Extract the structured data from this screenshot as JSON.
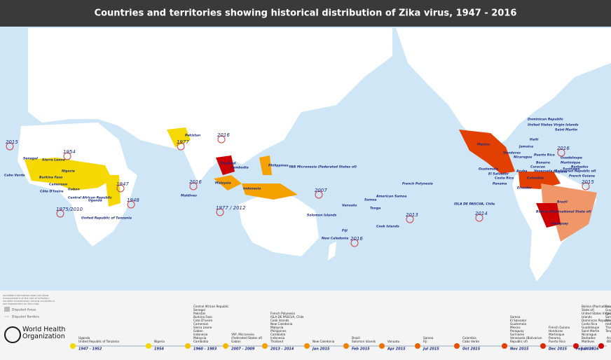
{
  "header": {
    "title": "Countries and territories showing historical distribution of Zika virus, 1947 - 2016"
  },
  "map": {
    "labels": [
      "Cabo Verde",
      "Senegal",
      "Sierra Leone",
      "Burkina Faso",
      "Côte D'Ivoire",
      "Cameroon",
      "Gabon",
      "Nigeria",
      "Central African Republic",
      "Uganda",
      "United Republic of Tanzania",
      "Pakistan",
      "Maldives",
      "Thailand",
      "Cambodia",
      "Philippines",
      "Malaysia",
      "Indonesia",
      "YAP, Micronesia (Federated States of)",
      "Vanuatu",
      "Solomon Islands",
      "Fiji",
      "New Caledonia",
      "Samoa",
      "American Samoa",
      "Tonga",
      "Cook Islands",
      "French Polynesia",
      "ISLA DE PASCUA, Chile",
      "Mexico",
      "Honduras",
      "Nicaragua",
      "Guatemala",
      "El Salvador",
      "Costa Rica",
      "Panama",
      "Dominican Republic",
      "United States Virgin Islands",
      "Haiti",
      "Jamaica",
      "Saint Martin",
      "Puerto Rico",
      "Guadeloupe",
      "Martinique",
      "Aruba",
      "Bonaire",
      "Curacao",
      "Colombia",
      "Venezuela (Bolivarian Republic of)",
      "Guyana",
      "Suriname",
      "French Guiana",
      "Ecuador",
      "Brazil",
      "Bolivia (Plurinational State of)",
      "Paraguay",
      "Barbados"
    ],
    "years": [
      "2015",
      "1954",
      "1947",
      "1948",
      "1975/2010",
      "1977",
      "2016",
      "2016",
      "1977 / 2012",
      "2007",
      "2016",
      "2013",
      "2014",
      "2016",
      "2015"
    ]
  },
  "legend": {
    "note": "Available information does not allow measurement of the risk of infection; variable transmission among countries is not represented on this map.",
    "items": [
      "Disputed Areas",
      "Disputed Borders"
    ]
  },
  "logo": {
    "name": "World Health Organization"
  },
  "timeline": [
    {
      "period": "1947 - 1952",
      "color": "#f5d800",
      "countries": [
        "Uganda",
        "United Republic of Tanzania"
      ]
    },
    {
      "period": "1954",
      "color": "#f5d800",
      "countries": [
        "Nigeria"
      ]
    },
    {
      "period": "1960 - 1983",
      "color": "#f5c400",
      "countries": [
        "Central African Republic",
        "Senegal",
        "Pakistan",
        "Burkina Faso",
        "Cote D'Ivoire",
        "Cameroon",
        "Sierra Leone",
        "Gabon",
        "Indonesia",
        "Malaysia",
        "Cambodia"
      ]
    },
    {
      "period": "2007 - 2009",
      "color": "#f5b800",
      "countries": [
        "YAP, Micronesia",
        "(Federated States of)",
        "Gabon"
      ]
    },
    {
      "period": "2013 - 2014",
      "color": "#f5a200",
      "countries": [
        "French Polynesia",
        "ISLA DE PASCUA, Chile",
        "Cook Islands",
        "New Caledonia",
        "Malaysia",
        "Philippines",
        "Cambodia",
        "Indonesia",
        "Thailand"
      ]
    },
    {
      "period": "Jan 2015",
      "color": "#f39000",
      "countries": [
        "New Caledonia"
      ]
    },
    {
      "period": "Feb 2015",
      "color": "#f08000",
      "countries": [
        "Brazil",
        "Solomon Islands"
      ]
    },
    {
      "period": "Apr 2015",
      "color": "#ee7000",
      "countries": [
        "Vanuatu"
      ]
    },
    {
      "period": "Jul 2015",
      "color": "#ea6000",
      "countries": [
        "Samoa",
        "Fiji"
      ]
    },
    {
      "period": "Oct 2015",
      "color": "#e65000",
      "countries": [
        "Colombia",
        "Cabo Verde"
      ]
    },
    {
      "period": "Nov 2015",
      "color": "#e24000",
      "countries": [
        "Samoa",
        "El Salvador",
        "Guatemala",
        "Mexico",
        "Paraguay",
        "Suriname",
        "Venezuela (Bolivarian",
        "Republic of)"
      ]
    },
    {
      "period": "Dec 2015",
      "color": "#dd2a00",
      "countries": [
        "French Guiana",
        "Honduras",
        "Martinique",
        "Panama",
        "Puerto Rico"
      ]
    },
    {
      "period": "Jan 2016",
      "color": "#d81400",
      "countries": [
        "Bolivia (Plurinational",
        "State of)",
        "United States Virgin",
        "Islands",
        "Dominican Republic",
        "Costa Rica",
        "Guadeloupe",
        "Saint Martin",
        "Nicaragua",
        "Barbados",
        "Maldives"
      ],
      "countries2": [
        "Ecuador",
        "Guyana",
        "Curaçao",
        "Samoa",
        "American Samoa",
        "Haiti",
        "Thailand",
        "Tonga"
      ]
    },
    {
      "period": "Feb 2016",
      "color": "#cc0000",
      "countries": [
        "Aruba",
        "BONAIRE, Netherlands"
      ]
    }
  ]
}
